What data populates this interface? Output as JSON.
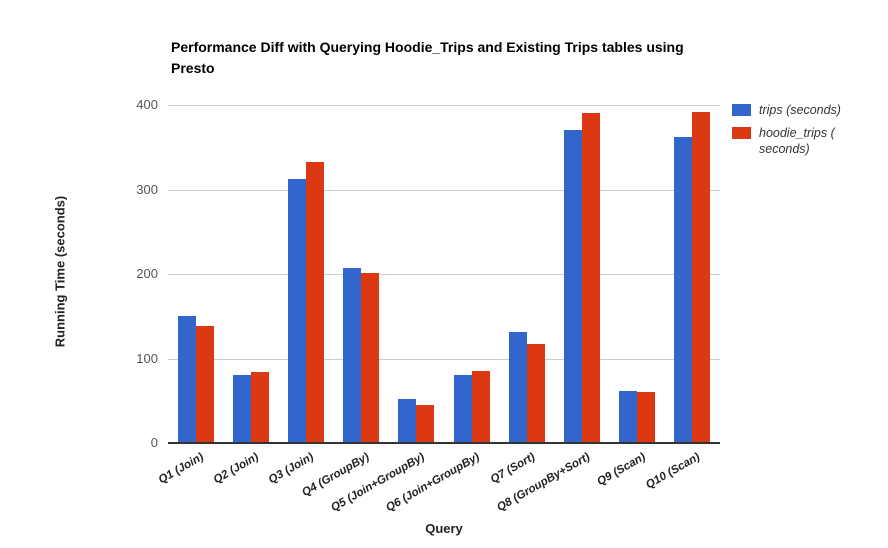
{
  "title": "Performance Diff with Querying Hoodie_Trips and Existing Trips tables using Presto",
  "axes": {
    "y_title": "Running Time (seconds)",
    "x_title": "Query",
    "y_ticks": [
      0,
      100,
      200,
      300,
      400
    ]
  },
  "legend": {
    "items": [
      {
        "label": "trips (seconds)",
        "color": "#3366cc"
      },
      {
        "label": "hoodie_trips ( seconds)",
        "color": "#dc3912"
      }
    ]
  },
  "colors": {
    "series_blue": "#3366cc",
    "series_red": "#dc3912",
    "gridline": "#cccccc",
    "axis_line": "#333333"
  },
  "chart_data": {
    "type": "bar",
    "title": "Performance Diff with Querying Hoodie_Trips and Existing Trips tables using Presto",
    "xlabel": "Query",
    "ylabel": "Running Time (seconds)",
    "ylim": [
      0,
      400
    ],
    "grid": true,
    "legend_position": "right",
    "categories": [
      "Q1 (Join)",
      "Q2 (Join)",
      "Q3 (Join)",
      "Q4 (GroupBy)",
      "Q5 (Join+GroupBy)",
      "Q6 (Join+GroupBy)",
      "Q7 (Sort)",
      "Q8 (GroupBy+Sort)",
      "Q9 (Scan)",
      "Q10 (Scan)"
    ],
    "series": [
      {
        "name": "trips (seconds)",
        "color": "#3366cc",
        "values": [
          150,
          80,
          313,
          207,
          52,
          80,
          131,
          371,
          61,
          362
        ]
      },
      {
        "name": "hoodie_trips (seconds)",
        "color": "#dc3912",
        "values": [
          138,
          84,
          332,
          201,
          45,
          85,
          117,
          390,
          60,
          392
        ]
      }
    ]
  }
}
